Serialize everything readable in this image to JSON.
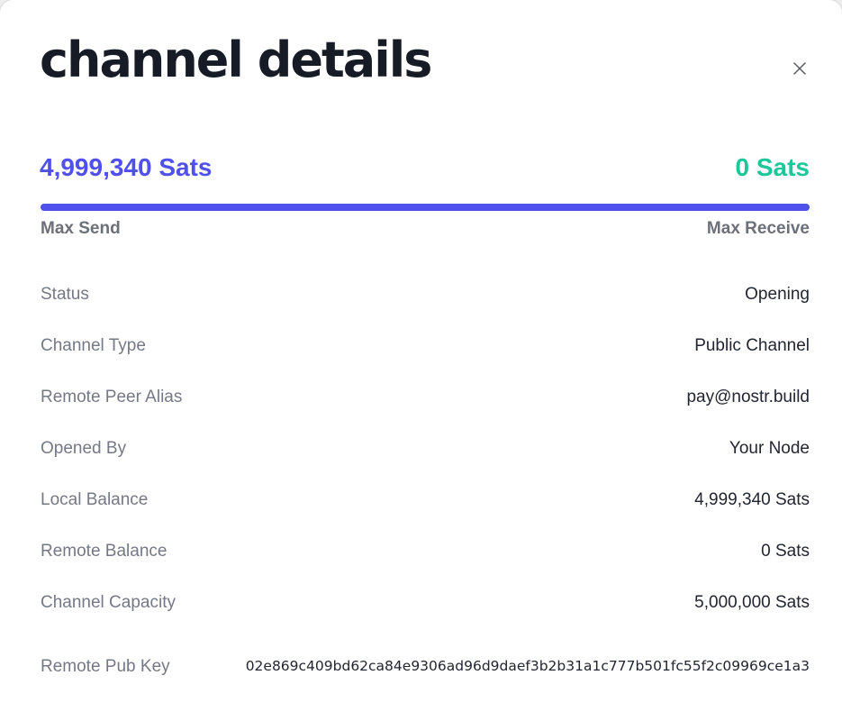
{
  "modal": {
    "title": "channel details",
    "close_icon": "close-icon"
  },
  "balance": {
    "max_send_amount": "4,999,340 Sats",
    "max_receive_amount": "0 Sats",
    "max_send_label": "Max Send",
    "max_receive_label": "Max Receive",
    "send_fraction": 1.0,
    "send_color": "#5050ec",
    "receive_color": "#1cc799"
  },
  "details": [
    {
      "label": "Status",
      "value": "Opening"
    },
    {
      "label": "Channel Type",
      "value": "Public Channel"
    },
    {
      "label": "Remote Peer Alias",
      "value": "pay@nostr.build"
    },
    {
      "label": "Opened By",
      "value": "Your Node"
    },
    {
      "label": "Local Balance",
      "value": "4,999,340 Sats"
    },
    {
      "label": "Remote Balance",
      "value": "0 Sats"
    },
    {
      "label": "Channel Capacity",
      "value": "5,000,000 Sats"
    }
  ],
  "pubkey": {
    "label": "Remote Pub Key",
    "value": "02e869c409bd62ca84e9306ad96d9daef3b2b31a1c777b501fc55f2c09969ce1a3"
  }
}
